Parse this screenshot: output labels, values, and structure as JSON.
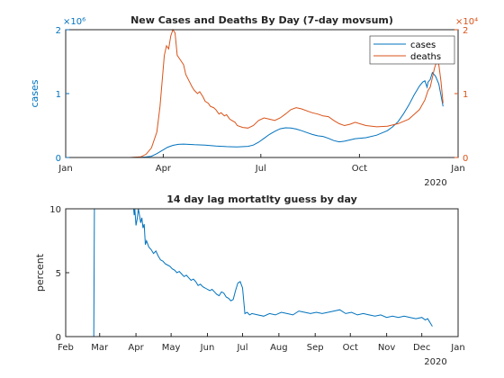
{
  "chart_data": [
    {
      "type": "line",
      "title": "New Cases and Deaths By Day (7-day movsum)",
      "x_axis": {
        "ticks": [
          {
            "label": "Jan",
            "day": 0
          },
          {
            "label": "Apr",
            "day": 91
          },
          {
            "label": "Jul",
            "day": 182
          },
          {
            "label": "Oct",
            "day": 274
          },
          {
            "label": "Jan",
            "day": 366
          }
        ],
        "year_label": "2020",
        "xlim_days": [
          0,
          366
        ]
      },
      "y_left": {
        "label": "cases",
        "ticks": [
          "0",
          "1",
          "2"
        ],
        "exponent": "×10⁶",
        "ylim": [
          0,
          2000000
        ],
        "color": "#0072BD"
      },
      "y_right": {
        "ticks": [
          "0",
          "1",
          "2"
        ],
        "exponent": "×10⁴",
        "ylim": [
          0,
          20000
        ],
        "color": "#D95319"
      },
      "legend": {
        "position": "top-right",
        "entries": [
          "cases",
          "deaths"
        ]
      },
      "series": [
        {
          "name": "cases",
          "axis": "left",
          "color": "#0072BD",
          "x": [
            0,
            60,
            70,
            75,
            80,
            85,
            90,
            95,
            100,
            105,
            110,
            120,
            130,
            140,
            150,
            160,
            170,
            175,
            180,
            185,
            190,
            195,
            200,
            205,
            210,
            215,
            220,
            225,
            230,
            235,
            240,
            245,
            250,
            255,
            260,
            265,
            270,
            280,
            290,
            300,
            305,
            310,
            315,
            320,
            325,
            330,
            333,
            335,
            336,
            337,
            338,
            340,
            342,
            345,
            348,
            352
          ],
          "y": [
            0,
            0,
            3000,
            8000,
            20000,
            60000,
            110000,
            160000,
            190000,
            205000,
            210000,
            200000,
            195000,
            180000,
            170000,
            165000,
            175000,
            195000,
            240000,
            300000,
            360000,
            410000,
            450000,
            465000,
            460000,
            445000,
            420000,
            390000,
            360000,
            340000,
            330000,
            300000,
            265000,
            245000,
            255000,
            275000,
            295000,
            310000,
            350000,
            420000,
            480000,
            560000,
            680000,
            820000,
            980000,
            1120000,
            1180000,
            1200000,
            1150000,
            1100000,
            1180000,
            1220000,
            1330000,
            1270000,
            1150000,
            800000
          ]
        },
        {
          "name": "deaths",
          "axis": "right",
          "color": "#D95319",
          "x": [
            0,
            60,
            70,
            75,
            80,
            85,
            88,
            90,
            92,
            94,
            96,
            98,
            100,
            102,
            104,
            106,
            108,
            110,
            112,
            115,
            118,
            120,
            123,
            125,
            128,
            130,
            133,
            135,
            138,
            140,
            143,
            145,
            148,
            150,
            153,
            155,
            158,
            160,
            165,
            170,
            175,
            180,
            185,
            190,
            195,
            200,
            205,
            210,
            215,
            220,
            225,
            230,
            235,
            240,
            245,
            250,
            255,
            260,
            265,
            270,
            280,
            290,
            300,
            310,
            320,
            330,
            335,
            338,
            340,
            342,
            344,
            346,
            348,
            350,
            352
          ],
          "y": [
            0,
            0,
            100,
            500,
            1500,
            4000,
            8000,
            12000,
            16000,
            17500,
            17000,
            19000,
            20000,
            19500,
            16000,
            15500,
            15000,
            14500,
            13000,
            12000,
            11000,
            10500,
            10000,
            10300,
            9500,
            8800,
            8500,
            8000,
            7800,
            7500,
            6800,
            7000,
            6500,
            6700,
            6000,
            5800,
            5500,
            5000,
            4700,
            4600,
            5000,
            5800,
            6200,
            6000,
            5800,
            6200,
            6800,
            7500,
            7800,
            7600,
            7300,
            7000,
            6800,
            6500,
            6400,
            5800,
            5300,
            5000,
            5200,
            5500,
            5000,
            4800,
            4900,
            5300,
            6000,
            7500,
            9000,
            10500,
            11000,
            12500,
            14000,
            15000,
            14500,
            12000,
            8500
          ]
        }
      ]
    },
    {
      "type": "line",
      "title": "14 day lag mortatlty guess by day",
      "x_axis": {
        "ticks": [
          {
            "label": "Feb",
            "day": 31
          },
          {
            "label": "Mar",
            "day": 60
          },
          {
            "label": "Apr",
            "day": 91
          },
          {
            "label": "May",
            "day": 121
          },
          {
            "label": "Jun",
            "day": 152
          },
          {
            "label": "Jul",
            "day": 182
          },
          {
            "label": "Aug",
            "day": 213
          },
          {
            "label": "Sep",
            "day": 244
          },
          {
            "label": "Oct",
            "day": 274
          },
          {
            "label": "Nov",
            "day": 305
          },
          {
            "label": "Dec",
            "day": 335
          },
          {
            "label": "Jan",
            "day": 366
          }
        ],
        "year_label": "2020",
        "xlim_days": [
          31,
          366
        ]
      },
      "y_axis": {
        "label": "percent",
        "ticks": [
          "0",
          "5",
          "10"
        ],
        "ylim": [
          0,
          10
        ]
      },
      "series": [
        {
          "name": "",
          "color": "#0072BD",
          "x": [
            31,
            55,
            55.5,
            56,
            56.5,
            58,
            65,
            70,
            75,
            80,
            85,
            89,
            89.5,
            90,
            91,
            92,
            93,
            94,
            95,
            96,
            97,
            98,
            99,
            100,
            102,
            104,
            106,
            108,
            110,
            112,
            114,
            116,
            118,
            120,
            122,
            124,
            126,
            128,
            130,
            132,
            134,
            136,
            138,
            140,
            142,
            144,
            146,
            148,
            150,
            152,
            154,
            156,
            158,
            160,
            162,
            164,
            166,
            168,
            170,
            172,
            174,
            176,
            178,
            180,
            182,
            184,
            186,
            188,
            190,
            195,
            200,
            205,
            210,
            215,
            220,
            225,
            230,
            235,
            240,
            245,
            250,
            255,
            260,
            265,
            270,
            275,
            280,
            285,
            290,
            295,
            300,
            305,
            310,
            315,
            320,
            325,
            330,
            335,
            338,
            340,
            342,
            344
          ],
          "y": [
            0,
            0,
            10,
            10,
            10,
            10,
            10,
            10,
            10,
            10,
            10,
            10,
            9.5,
            10,
            8.7,
            9.2,
            10,
            9.5,
            8.9,
            9.3,
            8.5,
            8.8,
            7.2,
            7.5,
            7.0,
            6.8,
            6.5,
            6.7,
            6.3,
            6.0,
            5.9,
            5.7,
            5.6,
            5.5,
            5.3,
            5.2,
            5.0,
            5.1,
            4.9,
            4.7,
            4.8,
            4.6,
            4.4,
            4.5,
            4.3,
            4.0,
            4.1,
            3.9,
            3.8,
            3.7,
            3.6,
            3.7,
            3.5,
            3.3,
            3.2,
            3.5,
            3.4,
            3.1,
            3.0,
            2.8,
            2.9,
            3.6,
            4.2,
            4.3,
            3.8,
            1.8,
            1.9,
            1.7,
            1.8,
            1.7,
            1.6,
            1.8,
            1.7,
            1.9,
            1.8,
            1.7,
            2.0,
            1.9,
            1.8,
            1.9,
            1.8,
            1.9,
            2.0,
            2.1,
            1.8,
            1.9,
            1.7,
            1.8,
            1.7,
            1.6,
            1.7,
            1.5,
            1.6,
            1.5,
            1.6,
            1.5,
            1.4,
            1.5,
            1.3,
            1.4,
            1.1,
            0.8
          ]
        }
      ]
    }
  ]
}
